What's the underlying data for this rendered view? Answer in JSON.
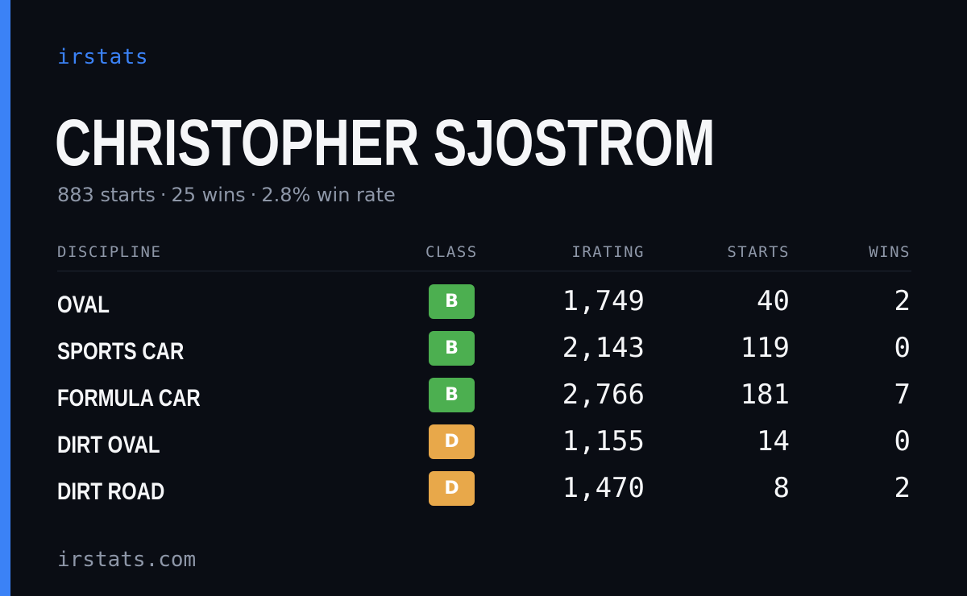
{
  "brand": "irstats",
  "player": {
    "name": "CHRISTOPHER SJOSTROM"
  },
  "summary": {
    "starts": "883 starts",
    "wins": "25 wins",
    "win_rate": "2.8% win rate",
    "separator": "·"
  },
  "table": {
    "headers": {
      "discipline": "DISCIPLINE",
      "class": "CLASS",
      "irating": "IRATING",
      "starts": "STARTS",
      "wins": "WINS"
    },
    "rows": [
      {
        "discipline": "OVAL",
        "class": "B",
        "irating": "1,749",
        "starts": "40",
        "wins": "2"
      },
      {
        "discipline": "SPORTS CAR",
        "class": "B",
        "irating": "2,143",
        "starts": "119",
        "wins": "0"
      },
      {
        "discipline": "FORMULA CAR",
        "class": "B",
        "irating": "2,766",
        "starts": "181",
        "wins": "7"
      },
      {
        "discipline": "DIRT OVAL",
        "class": "D",
        "irating": "1,155",
        "starts": "14",
        "wins": "0"
      },
      {
        "discipline": "DIRT ROAD",
        "class": "D",
        "irating": "1,470",
        "starts": "8",
        "wins": "2"
      }
    ]
  },
  "class_colors": {
    "B": "#4caf50",
    "D": "#e8a84a"
  },
  "colors": {
    "accent": "#3b82f6",
    "background": "#0a0d14"
  },
  "footer": {
    "domain": "irstats.com"
  }
}
